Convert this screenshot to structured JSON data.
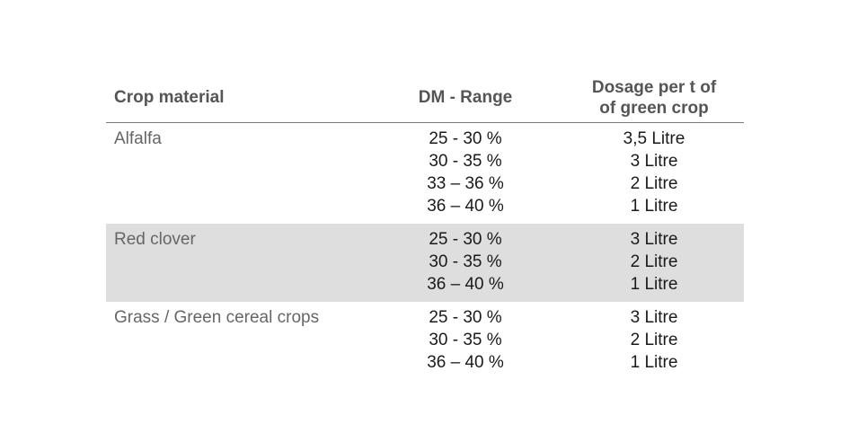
{
  "header": {
    "crop_material": "Crop material",
    "dm_range": "DM - Range",
    "dosage_line1": "Dosage per t of",
    "dosage_line2": "of green crop"
  },
  "groups": [
    {
      "crop": "Alfalfa",
      "rows": [
        {
          "dm": "25 - 30 %",
          "dosage": "3,5 Litre"
        },
        {
          "dm": "30 - 35 %",
          "dosage": "3 Litre"
        },
        {
          "dm": "33 – 36 %",
          "dosage": "2 Litre"
        },
        {
          "dm": "36 – 40 %",
          "dosage": "1 Litre"
        }
      ]
    },
    {
      "crop": "Red clover",
      "rows": [
        {
          "dm": "25 - 30 %",
          "dosage": "3 Litre"
        },
        {
          "dm": "30 - 35 %",
          "dosage": "2 Litre"
        },
        {
          "dm": "36 – 40 %",
          "dosage": "1 Litre"
        }
      ]
    },
    {
      "crop": "Grass / Green cereal crops",
      "rows": [
        {
          "dm": "25 - 30 %",
          "dosage": "3 Litre"
        },
        {
          "dm": "30 - 35 %",
          "dosage": "2 Litre"
        },
        {
          "dm": "36 – 40 %",
          "dosage": "1 Litre"
        }
      ]
    }
  ],
  "colors": {
    "header_text": "#555555",
    "crop_text": "#666666",
    "value_text": "#1a1a1a",
    "shaded_row": "#dedede",
    "rule": "#7a7a7a"
  }
}
